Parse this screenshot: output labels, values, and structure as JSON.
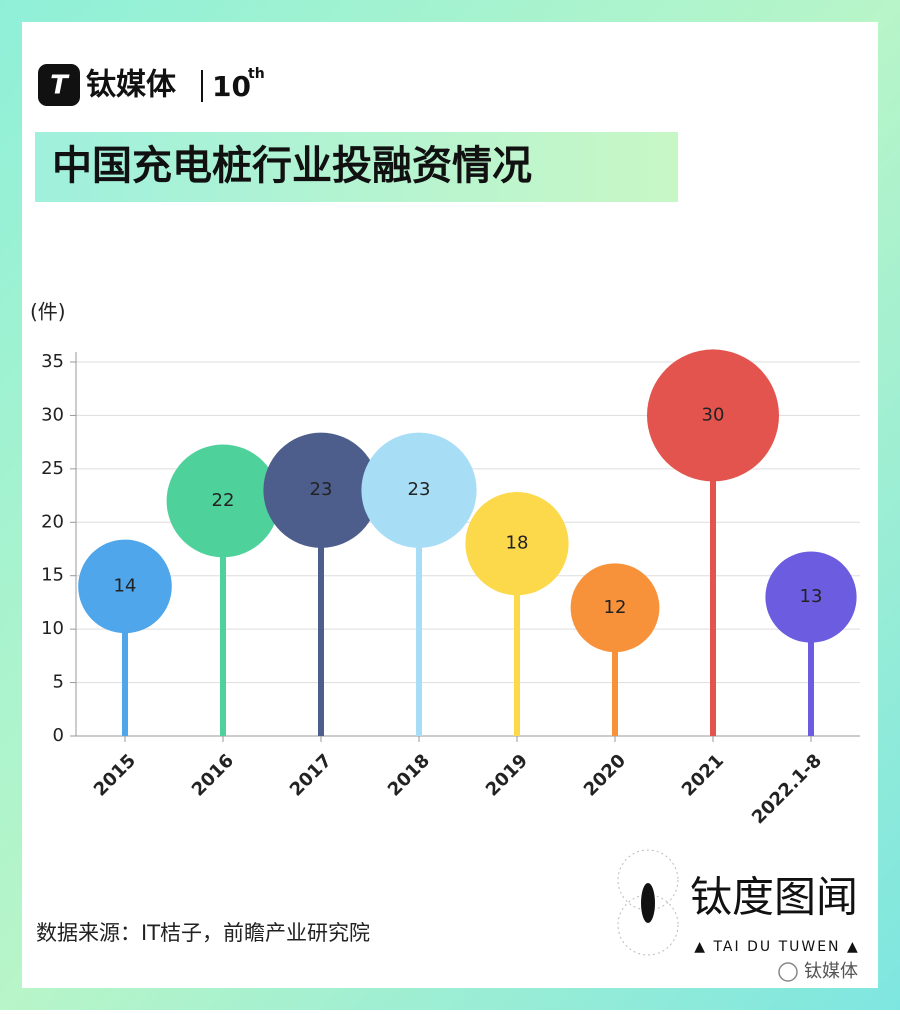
{
  "header": {
    "brand": "钛媒体",
    "edition": "10",
    "edition_suffix": "th"
  },
  "chart_data": {
    "type": "lollipop",
    "title": "中国充电桩行业投融资情况",
    "y_label": "(件)",
    "categories": [
      "2015",
      "2016",
      "2017",
      "2018",
      "2019",
      "2020",
      "2021",
      "2022.1-8"
    ],
    "values": [
      14,
      22,
      23,
      23,
      18,
      12,
      30,
      13
    ],
    "colors": [
      "#4fa6ea",
      "#4fd19c",
      "#4e5e8c",
      "#a8ddf6",
      "#fcd94b",
      "#f8923a",
      "#e4544f",
      "#6b5ce0"
    ],
    "ylim": [
      0,
      35
    ],
    "yticks": [
      0,
      5,
      10,
      15,
      20,
      25,
      30,
      35
    ],
    "grid": true,
    "source": "数据来源：IT桔子，前瞻产业研究院"
  },
  "footer": {
    "logo_title": "钛度图闻",
    "logo_subtitle": "▲ TAI DU TUWEN ▲",
    "wechat": "钛媒体"
  }
}
